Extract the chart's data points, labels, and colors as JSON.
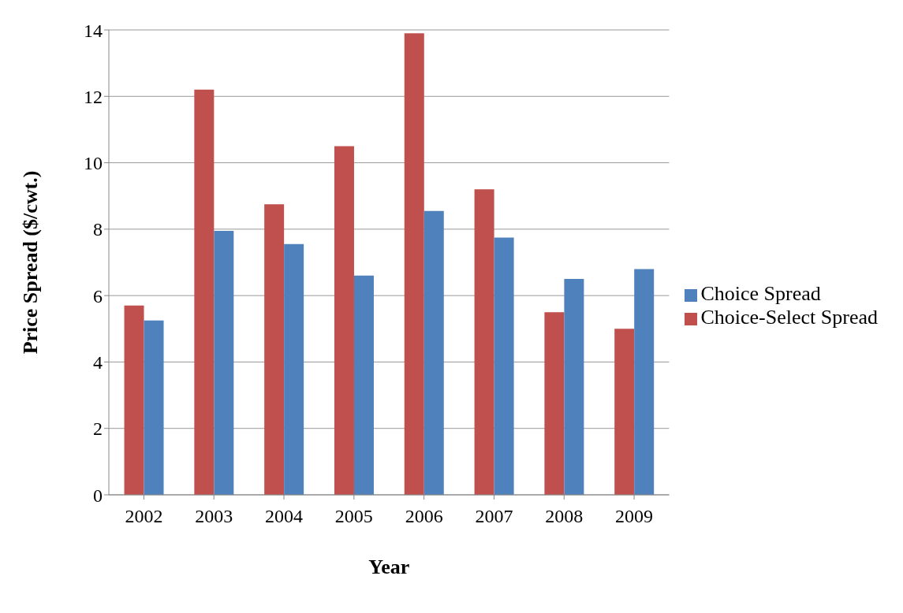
{
  "chart_data": {
    "type": "bar",
    "xlabel": "Year",
    "ylabel": "Price Spread ($/cwt.)",
    "categories": [
      "2002",
      "2003",
      "2004",
      "2005",
      "2006",
      "2007",
      "2008",
      "2009"
    ],
    "series": [
      {
        "name": "Choice-Select Spread",
        "color": "#c0504d",
        "values": [
          5.7,
          12.2,
          8.75,
          10.5,
          13.9,
          9.2,
          5.5,
          5.0
        ]
      },
      {
        "name": "Choice Spread",
        "color": "#4f81bd",
        "values": [
          5.25,
          7.95,
          7.55,
          6.6,
          8.55,
          7.75,
          6.5,
          6.8
        ]
      }
    ],
    "ylim": [
      0,
      14
    ],
    "yticks": [
      0,
      2,
      4,
      6,
      8,
      10,
      12,
      14
    ],
    "grid": "y",
    "legend": "right"
  }
}
